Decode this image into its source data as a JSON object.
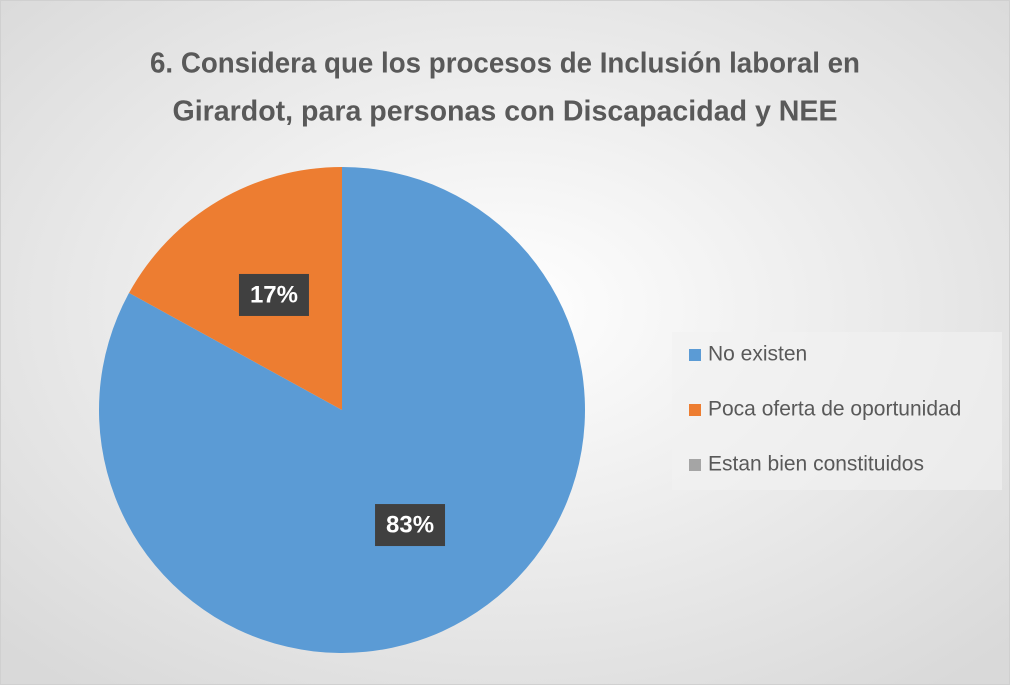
{
  "chart_data": {
    "type": "pie",
    "title": [
      "6. Considera que los procesos de Inclusión laboral en",
      "Girardot, para personas con Discapacidad y NEE"
    ],
    "categories": [
      "No existen",
      "Poca oferta de oportunidad",
      "Estan bien constituidos"
    ],
    "values": [
      83,
      17,
      0
    ],
    "value_labels": [
      "83%",
      "17%",
      null
    ],
    "colors": [
      "#5b9bd5",
      "#ed7d31",
      "#a5a5a5"
    ],
    "legend": "right"
  }
}
